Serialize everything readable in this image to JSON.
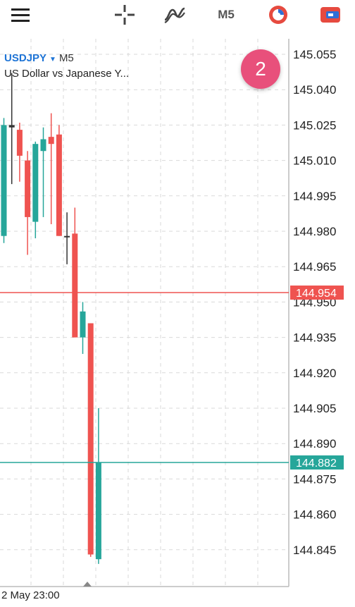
{
  "toolbar": {
    "menu_icon": "hamburger-menu-icon",
    "crosshair_icon": "crosshair-icon",
    "indicators_icon": "indicators-icon",
    "timeframe": "M5",
    "history_icon": "history-icon",
    "trade_icon": "trade-icon"
  },
  "symbol": {
    "ticker": "USDJPY",
    "timeframe": "M5",
    "description": "US Dollar vs Japanese Y..."
  },
  "badge": "2",
  "time_label": "2 May 23:00",
  "colors": {
    "bull": "#26a69a",
    "bear": "#ef5350",
    "bid_line": "#ef5350",
    "ask_line": "#26a69a",
    "grid": "#d9d9d9",
    "accent": "#1e74d6",
    "badge": "#e8507b"
  },
  "chart_data": {
    "type": "candlestick",
    "symbol": "USDJPY",
    "timeframe": "M5",
    "price_axis": [
      "145.055",
      "145.040",
      "145.025",
      "145.010",
      "144.995",
      "144.980",
      "144.965",
      "144.950",
      "144.935",
      "144.920",
      "144.905",
      "144.890",
      "144.875",
      "144.860",
      "144.845"
    ],
    "bid_price": "144.954",
    "ask_price": "144.882",
    "ylim": [
      144.835,
      145.06
    ],
    "candles": [
      {
        "o": 144.978,
        "h": 145.028,
        "l": 144.975,
        "c": 145.025
      },
      {
        "o": 145.025,
        "h": 145.047,
        "l": 145.0,
        "c": 145.024
      },
      {
        "o": 145.023,
        "h": 145.026,
        "l": 145.001,
        "c": 145.012
      },
      {
        "o": 145.01,
        "h": 145.014,
        "l": 144.97,
        "c": 144.986
      },
      {
        "o": 144.984,
        "h": 145.018,
        "l": 144.977,
        "c": 145.017
      },
      {
        "o": 145.014,
        "h": 145.024,
        "l": 144.986,
        "c": 145.019
      },
      {
        "o": 145.02,
        "h": 145.03,
        "l": 144.983,
        "c": 145.017
      },
      {
        "o": 145.021,
        "h": 145.025,
        "l": 144.978,
        "c": 144.978
      },
      {
        "o": 144.978,
        "h": 144.988,
        "l": 144.966,
        "c": 144.978
      },
      {
        "o": 144.979,
        "h": 144.99,
        "l": 144.935,
        "c": 144.935
      },
      {
        "o": 144.935,
        "h": 144.95,
        "l": 144.928,
        "c": 144.946
      },
      {
        "o": 144.941,
        "h": 144.941,
        "l": 144.842,
        "c": 144.843
      },
      {
        "o": 144.841,
        "h": 144.905,
        "l": 144.839,
        "c": 144.882
      }
    ]
  }
}
